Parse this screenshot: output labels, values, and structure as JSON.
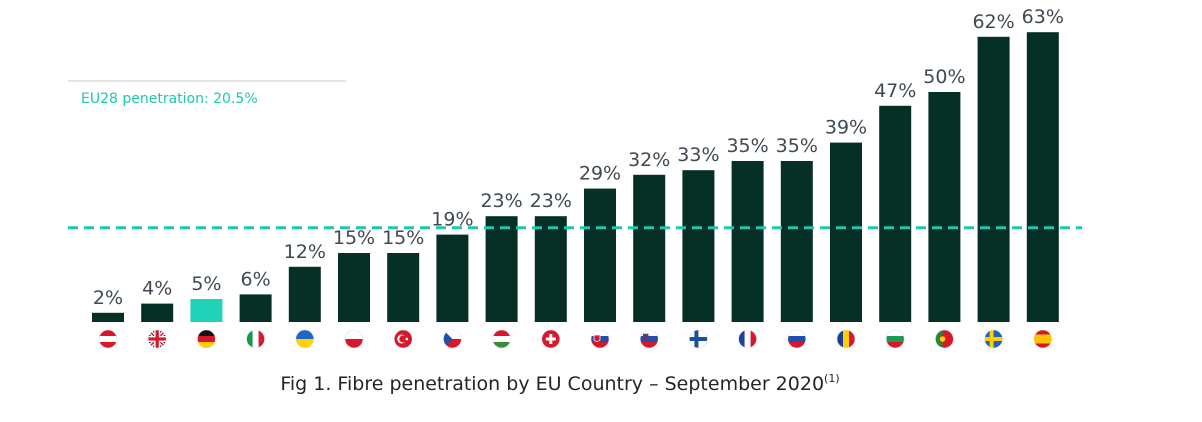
{
  "chart_data": {
    "type": "bar",
    "categories": [
      "Austria",
      "United Kingdom",
      "Germany",
      "Italy",
      "Ukraine",
      "Poland",
      "Turkey",
      "Czech Republic",
      "Hungary",
      "Switzerland",
      "Slovakia",
      "Slovenia",
      "Finland",
      "France",
      "Russia",
      "Romania",
      "Bulgaria",
      "Portugal",
      "Sweden",
      "Spain"
    ],
    "values": [
      2,
      4,
      5,
      6,
      12,
      15,
      15,
      19,
      23,
      23,
      29,
      32,
      33,
      35,
      35,
      39,
      47,
      50,
      62,
      63
    ],
    "data_labels": [
      "2%",
      "4%",
      "5%",
      "6%",
      "12%",
      "15%",
      "15%",
      "19%",
      "23%",
      "23%",
      "29%",
      "32%",
      "33%",
      "35%",
      "35%",
      "39%",
      "47%",
      "50%",
      "62%",
      "63%"
    ],
    "highlight_index": 2,
    "reference_line": {
      "value": 20.5,
      "label": "EU28 penetration: 20.5%"
    },
    "colors": {
      "bar": "#062f25",
      "highlight": "#1fd2b8",
      "reference": "#1ec8ae",
      "label": "#3f4a54"
    },
    "flags": [
      "at",
      "gb",
      "de",
      "it",
      "ua",
      "pl",
      "tr",
      "cz",
      "hu",
      "ch",
      "sk",
      "si",
      "fi",
      "fr",
      "ru",
      "ro",
      "bg",
      "pt",
      "se",
      "es"
    ],
    "title": "",
    "caption": "Fig 1. Fibre penetration by EU Country – September 2020",
    "caption_sup": "(1)",
    "ylim": [
      0,
      63
    ],
    "grid": false
  }
}
